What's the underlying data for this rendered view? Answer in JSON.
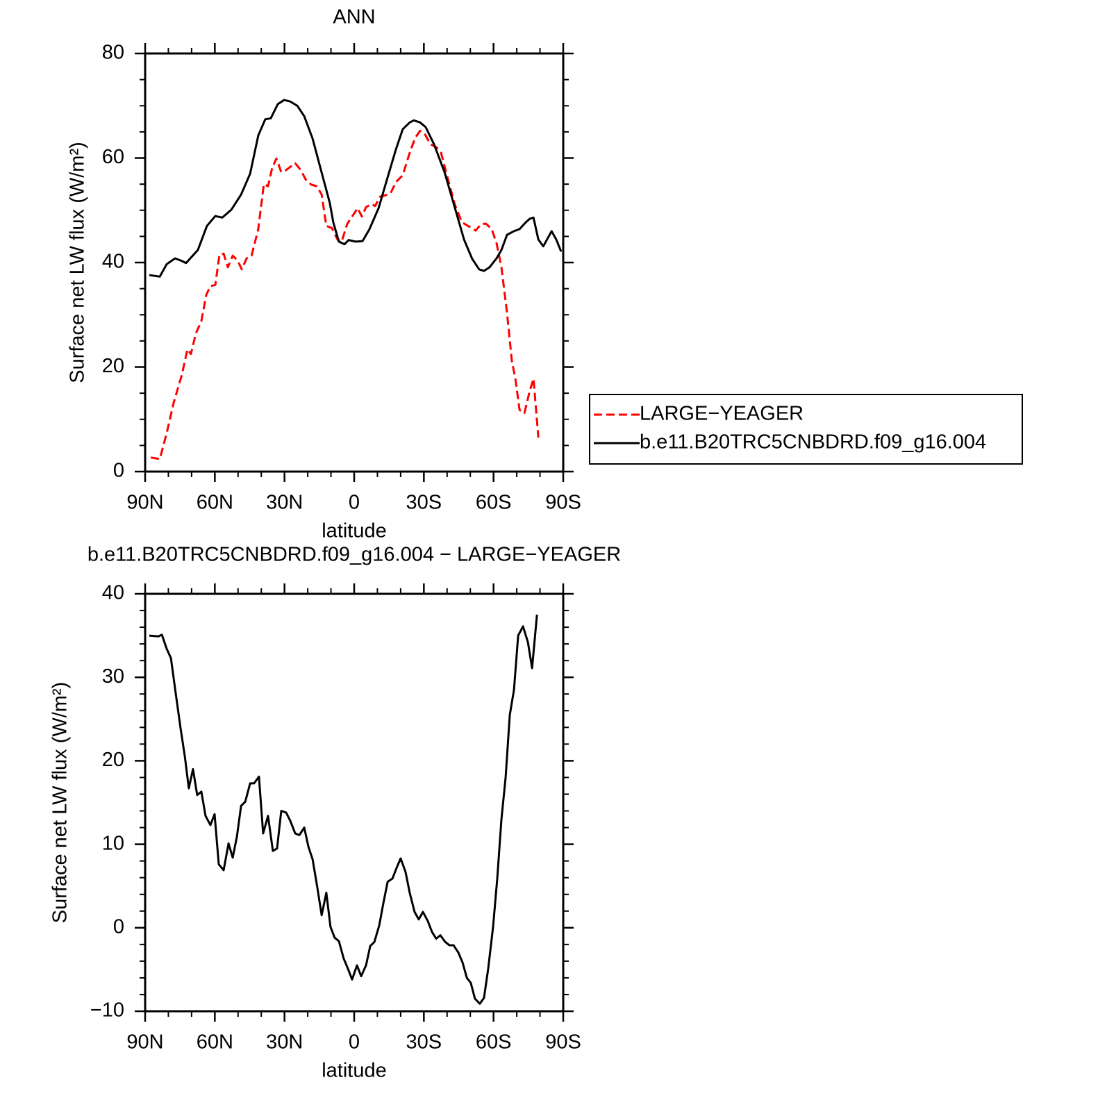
{
  "chart_data": [
    {
      "type": "line",
      "title": "ANN",
      "xlabel": "latitude",
      "ylabel": "Surface net LW flux (W/m²)",
      "xlim": [
        90,
        -90
      ],
      "xticks": [
        {
          "value": 90,
          "label": "90N"
        },
        {
          "value": 60,
          "label": "60N"
        },
        {
          "value": 30,
          "label": "30N"
        },
        0,
        {
          "value": -30,
          "label": "30S"
        },
        {
          "value": -60,
          "label": "60S"
        },
        {
          "value": -90,
          "label": "90S"
        }
      ],
      "xminorticks": [
        80,
        70,
        50,
        40,
        20,
        10,
        -10,
        -20,
        -40,
        -50,
        -70,
        -80
      ],
      "ylim": [
        0,
        80
      ],
      "yticks": [
        0,
        20,
        40,
        60,
        80
      ],
      "yminorticks": [
        5,
        10,
        15,
        25,
        30,
        35,
        45,
        50,
        55,
        65,
        70,
        75
      ],
      "legend": "right",
      "series": [
        {
          "name": "LARGE−YEAGER",
          "color": "#ff0000",
          "line_style": "dashed",
          "x": [
            87.6,
            83.7,
            80.7,
            77.7,
            74.2,
            71.8,
            70.3,
            68.2,
            65.8,
            63.7,
            61.9,
            59.8,
            58.0,
            56.2,
            54.4,
            52.3,
            50.2,
            48.4,
            46.3,
            44.2,
            41.3,
            38.9,
            37.1,
            35.3,
            33.5,
            31.4,
            29.3,
            27.5,
            25.4,
            23.0,
            20.9,
            18.5,
            16.1,
            14.0,
            12.0,
            9.6,
            7.2,
            5.4,
            3.0,
            0.6,
            -1.5,
            -3.3,
            -5.1,
            -7.5,
            -9.0,
            -11.1,
            -12.9,
            -15.6,
            -18.0,
            -20.9,
            -23.9,
            -26.3,
            -28.4,
            -30.5,
            -32.9,
            -35.3,
            -37.4,
            -40.4,
            -43.4,
            -46.4,
            -49.4,
            -52.3,
            -54.7,
            -56.8,
            -59.2,
            -61.3,
            -63.4,
            -65.8,
            -67.9,
            -69.4,
            -71.2,
            -73.3,
            -75.4,
            -77.2,
            -79.3
          ],
          "values": [
            2.7,
            2.4,
            7.4,
            13.2,
            18.5,
            23.4,
            22.5,
            26.4,
            28.8,
            33.8,
            35.5,
            35.7,
            41.5,
            41.7,
            39.1,
            41.3,
            40.4,
            38.7,
            40.8,
            41.3,
            46.4,
            55.0,
            54.6,
            58.1,
            59.9,
            57.3,
            57.7,
            58.3,
            59.0,
            57.7,
            55.9,
            54.9,
            54.6,
            53.0,
            47.0,
            46.6,
            44.4,
            44.0,
            47.4,
            49.0,
            50.4,
            48.8,
            50.6,
            51.2,
            50.8,
            52.6,
            52.8,
            53.2,
            55.4,
            56.7,
            61.0,
            63.9,
            65.2,
            64.5,
            62.6,
            62.1,
            61.0,
            55.9,
            51.0,
            47.7,
            46.9,
            46.1,
            47.4,
            47.4,
            46.4,
            43.7,
            39.1,
            30.4,
            21.1,
            17.8,
            11.8,
            11.2,
            15.1,
            17.8,
            6.5
          ]
        },
        {
          "name": "b.e11.B20TRC5CNBDRD.f09_g16.004",
          "color": "#000000",
          "line_style": "solid",
          "x": [
            88.2,
            83.7,
            80.7,
            77.1,
            74.2,
            72.4,
            67.3,
            63.4,
            59.8,
            56.8,
            52.9,
            48.7,
            44.8,
            41.3,
            38.3,
            35.9,
            32.9,
            30.2,
            27.5,
            24.5,
            21.5,
            17.9,
            14.3,
            10.5,
            9.0,
            6.6,
            4.2,
            2.4,
            -0.6,
            -3.6,
            -6.6,
            -10.5,
            -14.4,
            -18.0,
            -20.9,
            -23.9,
            -25.7,
            -28.4,
            -30.8,
            -34.4,
            -38.9,
            -43.4,
            -47.3,
            -50.8,
            -53.8,
            -55.9,
            -58.3,
            -61.3,
            -63.4,
            -65.8,
            -68.8,
            -71.2,
            -73.9,
            -75.7,
            -77.2,
            -79.3,
            -81.4,
            -85.0,
            -87.0,
            -89.1
          ],
          "values": [
            37.6,
            37.3,
            39.7,
            40.8,
            40.3,
            39.9,
            42.4,
            47.0,
            48.9,
            48.6,
            50.1,
            53.0,
            57.0,
            64.3,
            67.4,
            67.6,
            70.3,
            71.1,
            70.8,
            70.0,
            68.0,
            63.7,
            57.7,
            51.4,
            47.7,
            44.0,
            43.5,
            44.3,
            44.0,
            44.1,
            46.4,
            50.4,
            56.3,
            61.7,
            65.5,
            66.8,
            67.2,
            66.8,
            65.9,
            62.6,
            57.3,
            50.4,
            44.4,
            40.7,
            38.7,
            38.4,
            39.1,
            40.8,
            42.4,
            45.3,
            46.0,
            46.4,
            47.7,
            48.4,
            48.6,
            44.4,
            43.1,
            46.0,
            44.4,
            42.1
          ]
        }
      ]
    },
    {
      "type": "line",
      "title": "b.e11.B20TRC5CNBDRD.f09_g16.004 − LARGE−YEAGER",
      "xlabel": "latitude",
      "ylabel": "Surface net LW flux (W/m²)",
      "xlim": [
        90,
        -90
      ],
      "xticks": [
        {
          "value": 90,
          "label": "90N"
        },
        {
          "value": 60,
          "label": "60N"
        },
        {
          "value": 30,
          "label": "30N"
        },
        0,
        {
          "value": -30,
          "label": "30S"
        },
        {
          "value": -60,
          "label": "60S"
        },
        {
          "value": -90,
          "label": "90S"
        }
      ],
      "xminorticks": [
        80,
        70,
        50,
        40,
        20,
        10,
        -10,
        -20,
        -40,
        -50,
        -70,
        -80
      ],
      "ylim": [
        -10,
        40
      ],
      "yticks": [
        {
          "value": -10,
          "label": "−10"
        },
        0,
        10,
        20,
        30,
        40
      ],
      "yminorticks": [
        -8,
        -6,
        -4,
        -2,
        2,
        4,
        6,
        8,
        12,
        14,
        16,
        18,
        22,
        24,
        26,
        28,
        32,
        34,
        36,
        38
      ],
      "series": [
        {
          "color": "#000000",
          "line_style": "solid",
          "x": [
            88.2,
            84.3,
            82.8,
            80.7,
            78.9,
            76.8,
            74.7,
            72.9,
            71.2,
            69.4,
            67.6,
            65.8,
            64.0,
            61.9,
            60.1,
            58.3,
            56.2,
            54.1,
            52.3,
            50.5,
            48.7,
            46.9,
            44.8,
            43.1,
            41.0,
            39.2,
            37.1,
            35.0,
            33.2,
            31.4,
            29.3,
            27.5,
            25.4,
            23.6,
            21.5,
            19.7,
            17.9,
            15.8,
            14.0,
            12.0,
            10.2,
            8.4,
            6.6,
            4.5,
            2.7,
            0.9,
            -1.2,
            -3.0,
            -5.1,
            -6.9,
            -8.7,
            -10.8,
            -12.6,
            -14.4,
            -16.5,
            -18.3,
            -20.0,
            -22.1,
            -23.9,
            -26.0,
            -27.8,
            -29.6,
            -31.7,
            -33.5,
            -35.3,
            -37.1,
            -39.2,
            -41.0,
            -42.8,
            -44.9,
            -46.7,
            -48.5,
            -50.2,
            -52.0,
            -54.1,
            -55.9,
            -57.7,
            -59.8,
            -61.6,
            -63.4,
            -65.2,
            -67.0,
            -68.8,
            -70.6,
            -72.7,
            -74.8,
            -76.6,
            -78.7
          ],
          "values": [
            35.0,
            34.9,
            35.1,
            33.4,
            32.3,
            28.0,
            23.8,
            20.5,
            16.7,
            19.0,
            15.9,
            16.3,
            13.4,
            12.3,
            13.6,
            7.6,
            6.9,
            10.1,
            8.4,
            10.9,
            14.6,
            15.1,
            17.3,
            17.3,
            18.1,
            11.3,
            13.4,
            9.2,
            9.5,
            14.0,
            13.8,
            12.8,
            11.3,
            11.1,
            12.0,
            9.7,
            8.2,
            4.7,
            1.5,
            4.2,
            0.1,
            -1.2,
            -1.6,
            -3.7,
            -4.9,
            -6.2,
            -4.5,
            -5.8,
            -4.5,
            -2.2,
            -1.7,
            0.3,
            3.0,
            5.5,
            5.9,
            7.2,
            8.3,
            6.7,
            4.2,
            1.9,
            1.0,
            1.9,
            0.8,
            -0.5,
            -1.3,
            -0.9,
            -1.7,
            -2.1,
            -2.1,
            -3.0,
            -4.2,
            -6.0,
            -6.6,
            -8.5,
            -9.1,
            -8.4,
            -4.9,
            0.1,
            5.9,
            13.0,
            18.0,
            25.5,
            28.5,
            35.0,
            36.1,
            34.2,
            31.1,
            37.5
          ]
        }
      ]
    }
  ]
}
